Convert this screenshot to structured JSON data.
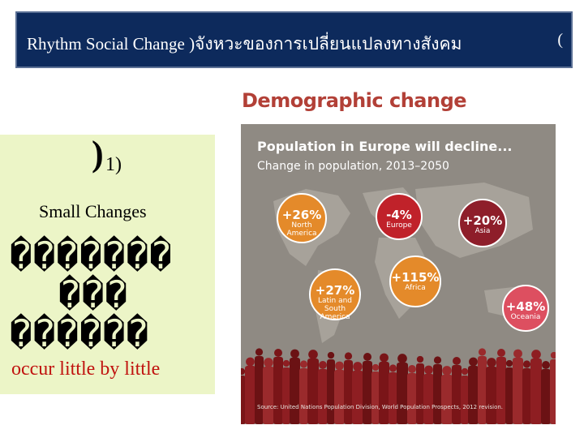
{
  "slide": {
    "title": "Rhythm Social Change )จังหวะของการเปลี่ยนแปลงทางสังคม",
    "title_end": "("
  },
  "left_panel": {
    "big_paren": ")",
    "number": "1)",
    "heading": "Small Changes",
    "glyph_line_1": "�������",
    "glyph_line_2": "���",
    "glyph_line_3": "������",
    "caption": "occur little by little"
  },
  "infographic": {
    "heading": "Demographic change",
    "subtitle": "Population in Europe will decline...",
    "subtitle2": "Change in population, 2013–2050",
    "regions": [
      {
        "value": "+26%",
        "name": "North America",
        "color": "#e48a2a"
      },
      {
        "value": "-4%",
        "name": "Europe",
        "color": "#c0222a"
      },
      {
        "value": "+20%",
        "name": "Asia",
        "color": "#8e1e2a"
      },
      {
        "value": "+27%",
        "name": "Latin and South America",
        "color": "#e48a2a"
      },
      {
        "value": "+115%",
        "name": "Africa",
        "color": "#e48a2a"
      },
      {
        "value": "+48%",
        "name": "Oceania",
        "color": "#dd4f60"
      }
    ],
    "source": "Source: United Nations Population Division, World Population Prospects, 2012 revision."
  }
}
